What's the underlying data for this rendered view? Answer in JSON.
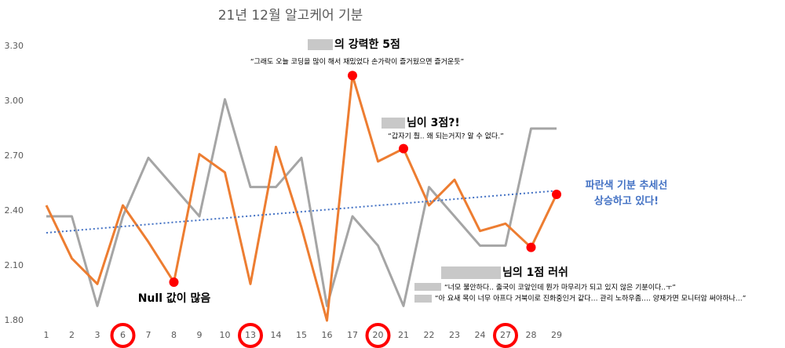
{
  "chart_data": {
    "type": "line",
    "title": "21년 12월 알고케어 기분",
    "categories": [
      "1",
      "2",
      "3",
      "6",
      "7",
      "8",
      "9",
      "10",
      "13",
      "14",
      "15",
      "16",
      "17",
      "20",
      "21",
      "22",
      "23",
      "24",
      "27",
      "28",
      "29"
    ],
    "series": [
      {
        "color": "#a5a5a5",
        "values": [
          2.37,
          2.37,
          1.88,
          2.37,
          2.69,
          2.53,
          2.37,
          3.01,
          2.53,
          2.53,
          2.69,
          1.88,
          2.37,
          2.21,
          1.88,
          2.53,
          2.37,
          2.21,
          2.21,
          2.85,
          2.85
        ]
      },
      {
        "color": "#ed7d31",
        "values": [
          2.43,
          2.14,
          2.0,
          2.43,
          2.23,
          2.01,
          2.71,
          2.61,
          2.0,
          2.75,
          2.31,
          1.8,
          3.14,
          2.67,
          2.74,
          2.43,
          2.57,
          2.29,
          2.33,
          2.2,
          2.49
        ]
      }
    ],
    "trendline": {
      "color": "#4472c4",
      "values": [
        2.28,
        2.51
      ]
    },
    "markers": {
      "color": "#ff0000",
      "series": 1,
      "indices": [
        5,
        12,
        14,
        19,
        20
      ]
    },
    "circled_categories": {
      "color": "#ff0000",
      "indices": [
        3,
        8,
        13,
        18
      ]
    },
    "ylim": [
      1.8,
      3.3
    ],
    "yticks": [
      {
        "value": 1.8,
        "label": "1.80"
      },
      {
        "value": 2.1,
        "label": "2.10"
      },
      {
        "value": 2.4,
        "label": "2.40"
      },
      {
        "value": 2.7,
        "label": "2.70"
      },
      {
        "value": 3.0,
        "label": "3.00"
      },
      {
        "value": 3.3,
        "label": "3.30"
      }
    ],
    "annotations": {
      "five": {
        "title": "의 강력한 5점",
        "quote": "“그래도 오늘 코딩을 많이 해서 재밌었다 손가락이 즐거웠으면 즐거운듯”"
      },
      "three": {
        "title": "님이 3점?!",
        "quote": "“갑자기 훱.. 왜 되는거지? 알 수 없다.”"
      },
      "one": {
        "title": "님의 1점 러쉬",
        "quote1": "“너모 불안하다.. 출국이 코앞인데 뭔가 마무리가 되고 있지 않은 기분이다..ㅜ”",
        "quote2": "“아 요새 목이 너무 아프다 거북이로 진화중인거 같다… 관리 노하우좀…. 양재가면 모니터암 써야하나…”"
      },
      "null": "Null 값이 많음",
      "trend1": "파란색 기분 추세선",
      "trend2": "상승하고 있다!"
    }
  }
}
